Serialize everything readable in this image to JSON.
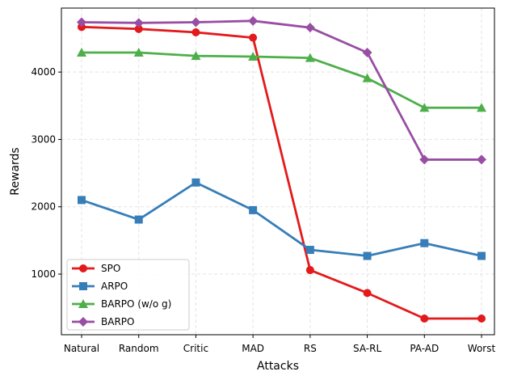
{
  "chart_data": {
    "type": "line",
    "title": "",
    "xlabel": "Attacks",
    "ylabel": "Rewards",
    "categories": [
      "Natural",
      "Random",
      "Critic",
      "MAD",
      "RS",
      "SA-RL",
      "PA-AD",
      "Worst"
    ],
    "ylim": [
      100,
      4950
    ],
    "yticks": [
      1000,
      2000,
      3000,
      4000
    ],
    "grid": true,
    "legend_position": "lower-left",
    "series": [
      {
        "name": "SPO",
        "color": "#e31a1c",
        "marker": "circle",
        "values": [
          4670,
          4640,
          4590,
          4510,
          1060,
          720,
          340,
          340
        ]
      },
      {
        "name": "ARPO",
        "color": "#377eb8",
        "marker": "square",
        "values": [
          2100,
          1810,
          2360,
          1950,
          1360,
          1270,
          1460,
          1270
        ]
      },
      {
        "name": "BARPO (w/o g)",
        "color": "#4daf4a",
        "marker": "triangle",
        "values": [
          4290,
          4290,
          4240,
          4230,
          4210,
          3910,
          3470,
          3470
        ]
      },
      {
        "name": "BARPO",
        "color": "#984ea3",
        "marker": "diamond",
        "values": [
          4740,
          4730,
          4740,
          4760,
          4660,
          4290,
          2700,
          2700
        ]
      }
    ]
  }
}
